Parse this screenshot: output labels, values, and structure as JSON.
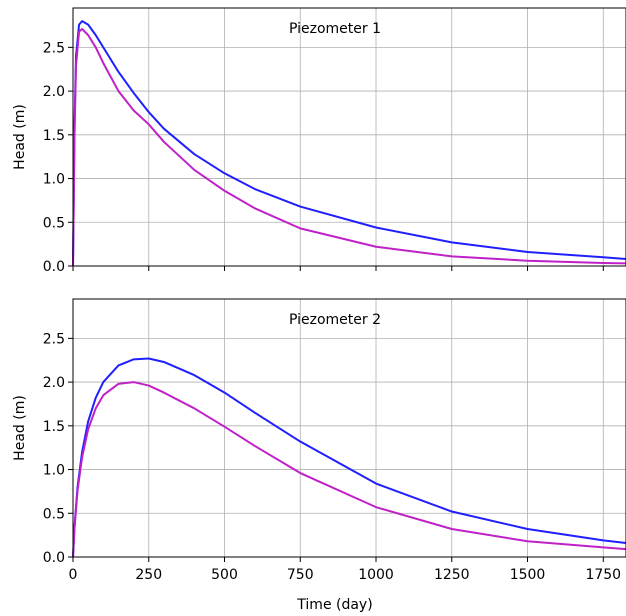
{
  "chart_data": [
    {
      "type": "line",
      "title": "Piezometer 1",
      "xlabel": "",
      "ylabel": "Head (m)",
      "xlim": [
        0,
        1825
      ],
      "ylim": [
        0,
        2.95
      ],
      "xticks": [
        0,
        250,
        500,
        750,
        1000,
        1250,
        1500,
        1750
      ],
      "yticks": [
        0.0,
        0.5,
        1.0,
        1.5,
        2.0,
        2.5
      ],
      "ytick_labels": [
        "0.0",
        "0.5",
        "1.0",
        "1.5",
        "2.0",
        "2.5"
      ],
      "show_xtick_labels": false,
      "grid": true,
      "series": [
        {
          "color": "#1f1fff",
          "x": [
            0,
            5,
            10,
            20,
            30,
            50,
            75,
            100,
            150,
            200,
            250,
            300,
            400,
            500,
            600,
            750,
            1000,
            1250,
            1500,
            1750,
            1825
          ],
          "y": [
            0,
            1.6,
            2.4,
            2.76,
            2.8,
            2.76,
            2.64,
            2.5,
            2.22,
            1.98,
            1.76,
            1.57,
            1.28,
            1.06,
            0.88,
            0.68,
            0.44,
            0.27,
            0.16,
            0.1,
            0.08
          ]
        },
        {
          "color": "#c020c8",
          "x": [
            0,
            5,
            10,
            20,
            30,
            50,
            75,
            100,
            150,
            200,
            250,
            300,
            400,
            500,
            600,
            750,
            1000,
            1250,
            1500,
            1750,
            1825
          ],
          "y": [
            0,
            1.5,
            2.3,
            2.68,
            2.71,
            2.64,
            2.5,
            2.32,
            2.0,
            1.78,
            1.62,
            1.42,
            1.1,
            0.86,
            0.66,
            0.43,
            0.22,
            0.11,
            0.06,
            0.035,
            0.03
          ]
        }
      ]
    },
    {
      "type": "line",
      "title": "Piezometer 2",
      "xlabel": "Time (day)",
      "ylabel": "Head (m)",
      "xlim": [
        0,
        1825
      ],
      "ylim": [
        0,
        2.95
      ],
      "xticks": [
        0,
        250,
        500,
        750,
        1000,
        1250,
        1500,
        1750
      ],
      "xtick_labels": [
        "0",
        "250",
        "500",
        "750",
        "1000",
        "1250",
        "1500",
        "1750"
      ],
      "yticks": [
        0.0,
        0.5,
        1.0,
        1.5,
        2.0,
        2.5
      ],
      "ytick_labels": [
        "0.0",
        "0.5",
        "1.0",
        "1.5",
        "2.0",
        "2.5"
      ],
      "show_xtick_labels": true,
      "grid": true,
      "series": [
        {
          "color": "#1f1fff",
          "x": [
            0,
            5,
            15,
            30,
            50,
            75,
            100,
            150,
            200,
            250,
            300,
            400,
            500,
            600,
            750,
            1000,
            1250,
            1500,
            1750,
            1825
          ],
          "y": [
            0,
            0.35,
            0.8,
            1.2,
            1.55,
            1.82,
            2.0,
            2.19,
            2.26,
            2.27,
            2.23,
            2.08,
            1.88,
            1.65,
            1.32,
            0.84,
            0.52,
            0.32,
            0.19,
            0.16
          ]
        },
        {
          "color": "#c020c8",
          "x": [
            0,
            5,
            15,
            30,
            50,
            75,
            100,
            150,
            200,
            250,
            300,
            400,
            500,
            600,
            750,
            1000,
            1250,
            1500,
            1750,
            1825
          ],
          "y": [
            0,
            0.33,
            0.76,
            1.14,
            1.46,
            1.7,
            1.85,
            1.98,
            2.0,
            1.96,
            1.88,
            1.7,
            1.49,
            1.27,
            0.96,
            0.57,
            0.32,
            0.18,
            0.11,
            0.09
          ]
        }
      ]
    }
  ]
}
